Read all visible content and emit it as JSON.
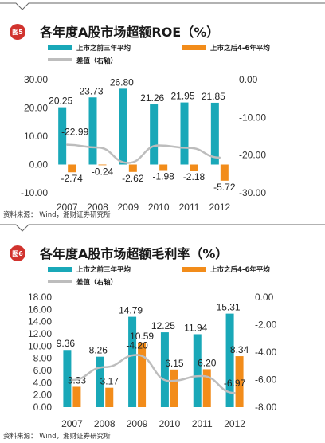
{
  "colors": {
    "series1": "#19a8b8",
    "series2": "#f28c1a",
    "diff": "#bdbdbd",
    "badge": "#d1332e",
    "rule": "#666666"
  },
  "source": "资料来源： Wind，湘财证券研究所",
  "chart_data": [
    {
      "type": "bar",
      "badge": "图5",
      "title": "各年度A股市场超额ROE（%）",
      "categories": [
        "2007",
        "2008",
        "2009",
        "2010",
        "2011",
        "2012"
      ],
      "series": [
        {
          "name": "上市之前三年平均",
          "values": [
            20.25,
            23.73,
            26.8,
            21.26,
            21.95,
            21.85
          ],
          "labels": [
            "20.25",
            "23.73",
            "26.80",
            "21.26",
            "21.95",
            "21.85"
          ]
        },
        {
          "name": "上市之后4-6年平均",
          "values": [
            -2.74,
            -0.24,
            -2.62,
            -1.98,
            -2.18,
            -5.72
          ],
          "labels": [
            "-2.74",
            "-0.24",
            "-2.62",
            "-1.98",
            "-2.18",
            "-5.72"
          ]
        }
      ],
      "line_series": {
        "name": "差值（右轴）",
        "values": [
          -22.99,
          -23.97,
          -29.42,
          -23.24,
          -24.13,
          -27.57
        ],
        "labels": [
          "-22.99"
        ]
      },
      "ylim": [
        -10,
        30
      ],
      "yticks": [
        "30.00",
        "20.00",
        "10.00",
        "0.00",
        "-10.00"
      ],
      "y2lim": [
        -40,
        0
      ],
      "y2ticks": [
        "0.00",
        "-10.00",
        "-20.00",
        "-30.00"
      ]
    },
    {
      "type": "bar",
      "badge": "图6",
      "title": "各年度A股市场超额毛利率（%）",
      "categories": [
        "2007",
        "2008",
        "2009",
        "2010",
        "2011",
        "2012"
      ],
      "series": [
        {
          "name": "上市之前三年平均",
          "values": [
            9.36,
            8.26,
            14.79,
            12.25,
            11.94,
            15.31
          ],
          "labels": [
            "9.36",
            "8.26",
            "14.79",
            "12.25",
            "11.94",
            "15.31"
          ]
        },
        {
          "name": "上市之后4-6年平均",
          "values": [
            3.33,
            3.17,
            10.59,
            6.15,
            6.2,
            8.34
          ],
          "labels": [
            "3.33",
            "3.17",
            "10.59",
            "6.15",
            "6.20",
            "8.34"
          ]
        }
      ],
      "line_series": {
        "name": "差值（右轴）",
        "values": [
          -6.03,
          -5.09,
          -4.2,
          -6.1,
          -5.74,
          -6.97
        ],
        "labels": [
          "",
          "",
          "-4.20",
          "",
          "",
          "-6.97"
        ]
      },
      "ylim": [
        0,
        18
      ],
      "yticks": [
        "18.00",
        "16.00",
        "14.00",
        "12.00",
        "10.00",
        "8.00",
        "6.00",
        "4.00",
        "2.00",
        "0.00"
      ],
      "y2lim": [
        -8,
        0
      ],
      "y2ticks": [
        "0.00",
        "-2.00",
        "-4.00",
        "-6.00",
        "-8.00"
      ]
    }
  ]
}
